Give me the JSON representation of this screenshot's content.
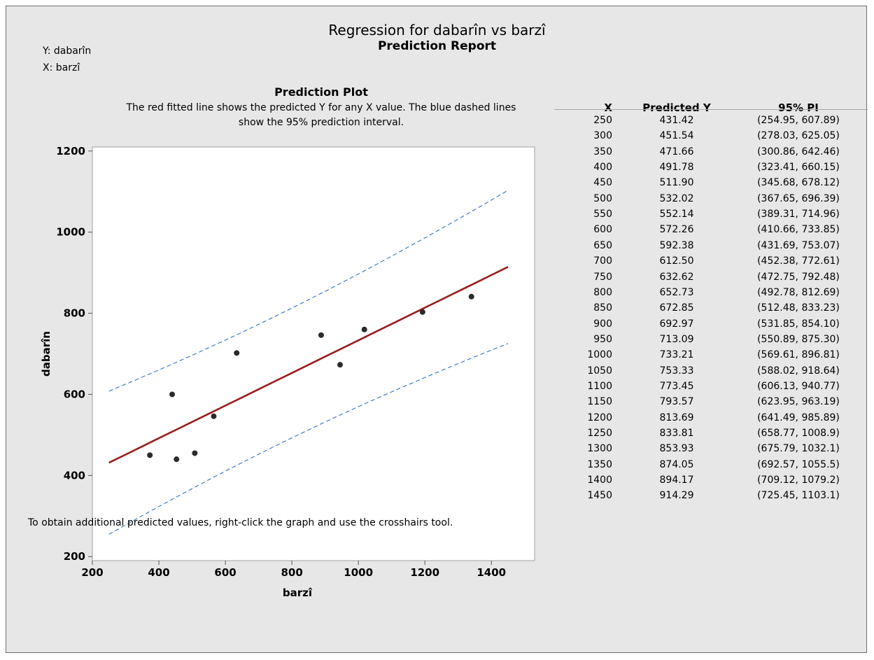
{
  "header": {
    "title": "Regression for dabarîn vs barzî",
    "subtitle": "Prediction Report",
    "y_var": "Y: dabarîn",
    "x_var": "X: barzî"
  },
  "plot": {
    "title": "Prediction Plot",
    "description": "The red fitted line shows the predicted Y for any X value. The blue dashed lines show the 95% prediction interval."
  },
  "table": {
    "columns": [
      "X",
      "Predicted Y",
      "95% PI"
    ],
    "rows": [
      {
        "x": "250",
        "pred": "431.42",
        "pi": "(254.95, 607.89)"
      },
      {
        "x": "300",
        "pred": "451.54",
        "pi": "(278.03, 625.05)"
      },
      {
        "x": "350",
        "pred": "471.66",
        "pi": "(300.86, 642.46)"
      },
      {
        "x": "400",
        "pred": "491.78",
        "pi": "(323.41, 660.15)"
      },
      {
        "x": "450",
        "pred": "511.90",
        "pi": "(345.68, 678.12)"
      },
      {
        "x": "500",
        "pred": "532.02",
        "pi": "(367.65, 696.39)"
      },
      {
        "x": "550",
        "pred": "552.14",
        "pi": "(389.31, 714.96)"
      },
      {
        "x": "600",
        "pred": "572.26",
        "pi": "(410.66, 733.85)"
      },
      {
        "x": "650",
        "pred": "592.38",
        "pi": "(431.69, 753.07)"
      },
      {
        "x": "700",
        "pred": "612.50",
        "pi": "(452.38, 772.61)"
      },
      {
        "x": "750",
        "pred": "632.62",
        "pi": "(472.75, 792.48)"
      },
      {
        "x": "800",
        "pred": "652.73",
        "pi": "(492.78, 812.69)"
      },
      {
        "x": "850",
        "pred": "672.85",
        "pi": "(512.48, 833.23)"
      },
      {
        "x": "900",
        "pred": "692.97",
        "pi": "(531.85, 854.10)"
      },
      {
        "x": "950",
        "pred": "713.09",
        "pi": "(550.89, 875.30)"
      },
      {
        "x": "1000",
        "pred": "733.21",
        "pi": "(569.61, 896.81)"
      },
      {
        "x": "1050",
        "pred": "753.33",
        "pi": "(588.02, 918.64)"
      },
      {
        "x": "1100",
        "pred": "773.45",
        "pi": "(606.13, 940.77)"
      },
      {
        "x": "1150",
        "pred": "793.57",
        "pi": "(623.95, 963.19)"
      },
      {
        "x": "1200",
        "pred": "813.69",
        "pi": "(641.49, 985.89)"
      },
      {
        "x": "1250",
        "pred": "833.81",
        "pi": "(658.77, 1008.9)"
      },
      {
        "x": "1300",
        "pred": "853.93",
        "pi": "(675.79, 1032.1)"
      },
      {
        "x": "1350",
        "pred": "874.05",
        "pi": "(692.57, 1055.5)"
      },
      {
        "x": "1400",
        "pred": "894.17",
        "pi": "(709.12, 1079.2)"
      },
      {
        "x": "1450",
        "pred": "914.29",
        "pi": "(725.45, 1103.1)"
      }
    ]
  },
  "footnote": "To obtain additional predicted values, right-click the graph and use the crosshairs tool.",
  "chart_data": {
    "type": "scatter",
    "xlabel": "barzî",
    "ylabel": "dabarîn",
    "xlim": [
      200,
      1530
    ],
    "ylim": [
      190,
      1210
    ],
    "xticks": [
      200,
      400,
      600,
      800,
      1000,
      1200,
      1400
    ],
    "yticks": [
      200,
      400,
      600,
      800,
      1000,
      1200
    ],
    "grid": false,
    "colors": {
      "points": "#2b2b2b",
      "fit": "#9b1c1c",
      "pi": "#2e72c9"
    },
    "points": [
      {
        "x": 373,
        "y": 450
      },
      {
        "x": 440,
        "y": 600
      },
      {
        "x": 453,
        "y": 440
      },
      {
        "x": 508,
        "y": 455
      },
      {
        "x": 565,
        "y": 546
      },
      {
        "x": 634,
        "y": 702
      },
      {
        "x": 888,
        "y": 746
      },
      {
        "x": 945,
        "y": 673
      },
      {
        "x": 1018,
        "y": 760
      },
      {
        "x": 1193,
        "y": 803
      },
      {
        "x": 1340,
        "y": 841
      }
    ],
    "fit_line": {
      "x": [
        250,
        300,
        350,
        400,
        450,
        500,
        550,
        600,
        650,
        700,
        750,
        800,
        850,
        900,
        950,
        1000,
        1050,
        1100,
        1150,
        1200,
        1250,
        1300,
        1350,
        1400,
        1450
      ],
      "y": [
        431.42,
        451.54,
        471.66,
        491.78,
        511.9,
        532.02,
        552.14,
        572.26,
        592.38,
        612.5,
        632.62,
        652.73,
        672.85,
        692.97,
        713.09,
        733.21,
        753.33,
        773.45,
        793.57,
        813.69,
        833.81,
        853.93,
        874.05,
        894.17,
        914.29
      ]
    },
    "pi_lower": [
      254.95,
      278.03,
      300.86,
      323.41,
      345.68,
      367.65,
      389.31,
      410.66,
      431.69,
      452.38,
      472.75,
      492.78,
      512.48,
      531.85,
      550.89,
      569.61,
      588.02,
      606.13,
      623.95,
      641.49,
      658.77,
      675.79,
      692.57,
      709.12,
      725.45
    ],
    "pi_upper": [
      607.89,
      625.05,
      642.46,
      660.15,
      678.12,
      696.39,
      714.96,
      733.85,
      753.07,
      772.61,
      792.48,
      812.69,
      833.23,
      854.1,
      875.3,
      896.81,
      918.64,
      940.77,
      963.19,
      985.89,
      1008.9,
      1032.1,
      1055.5,
      1079.2,
      1103.1
    ]
  }
}
